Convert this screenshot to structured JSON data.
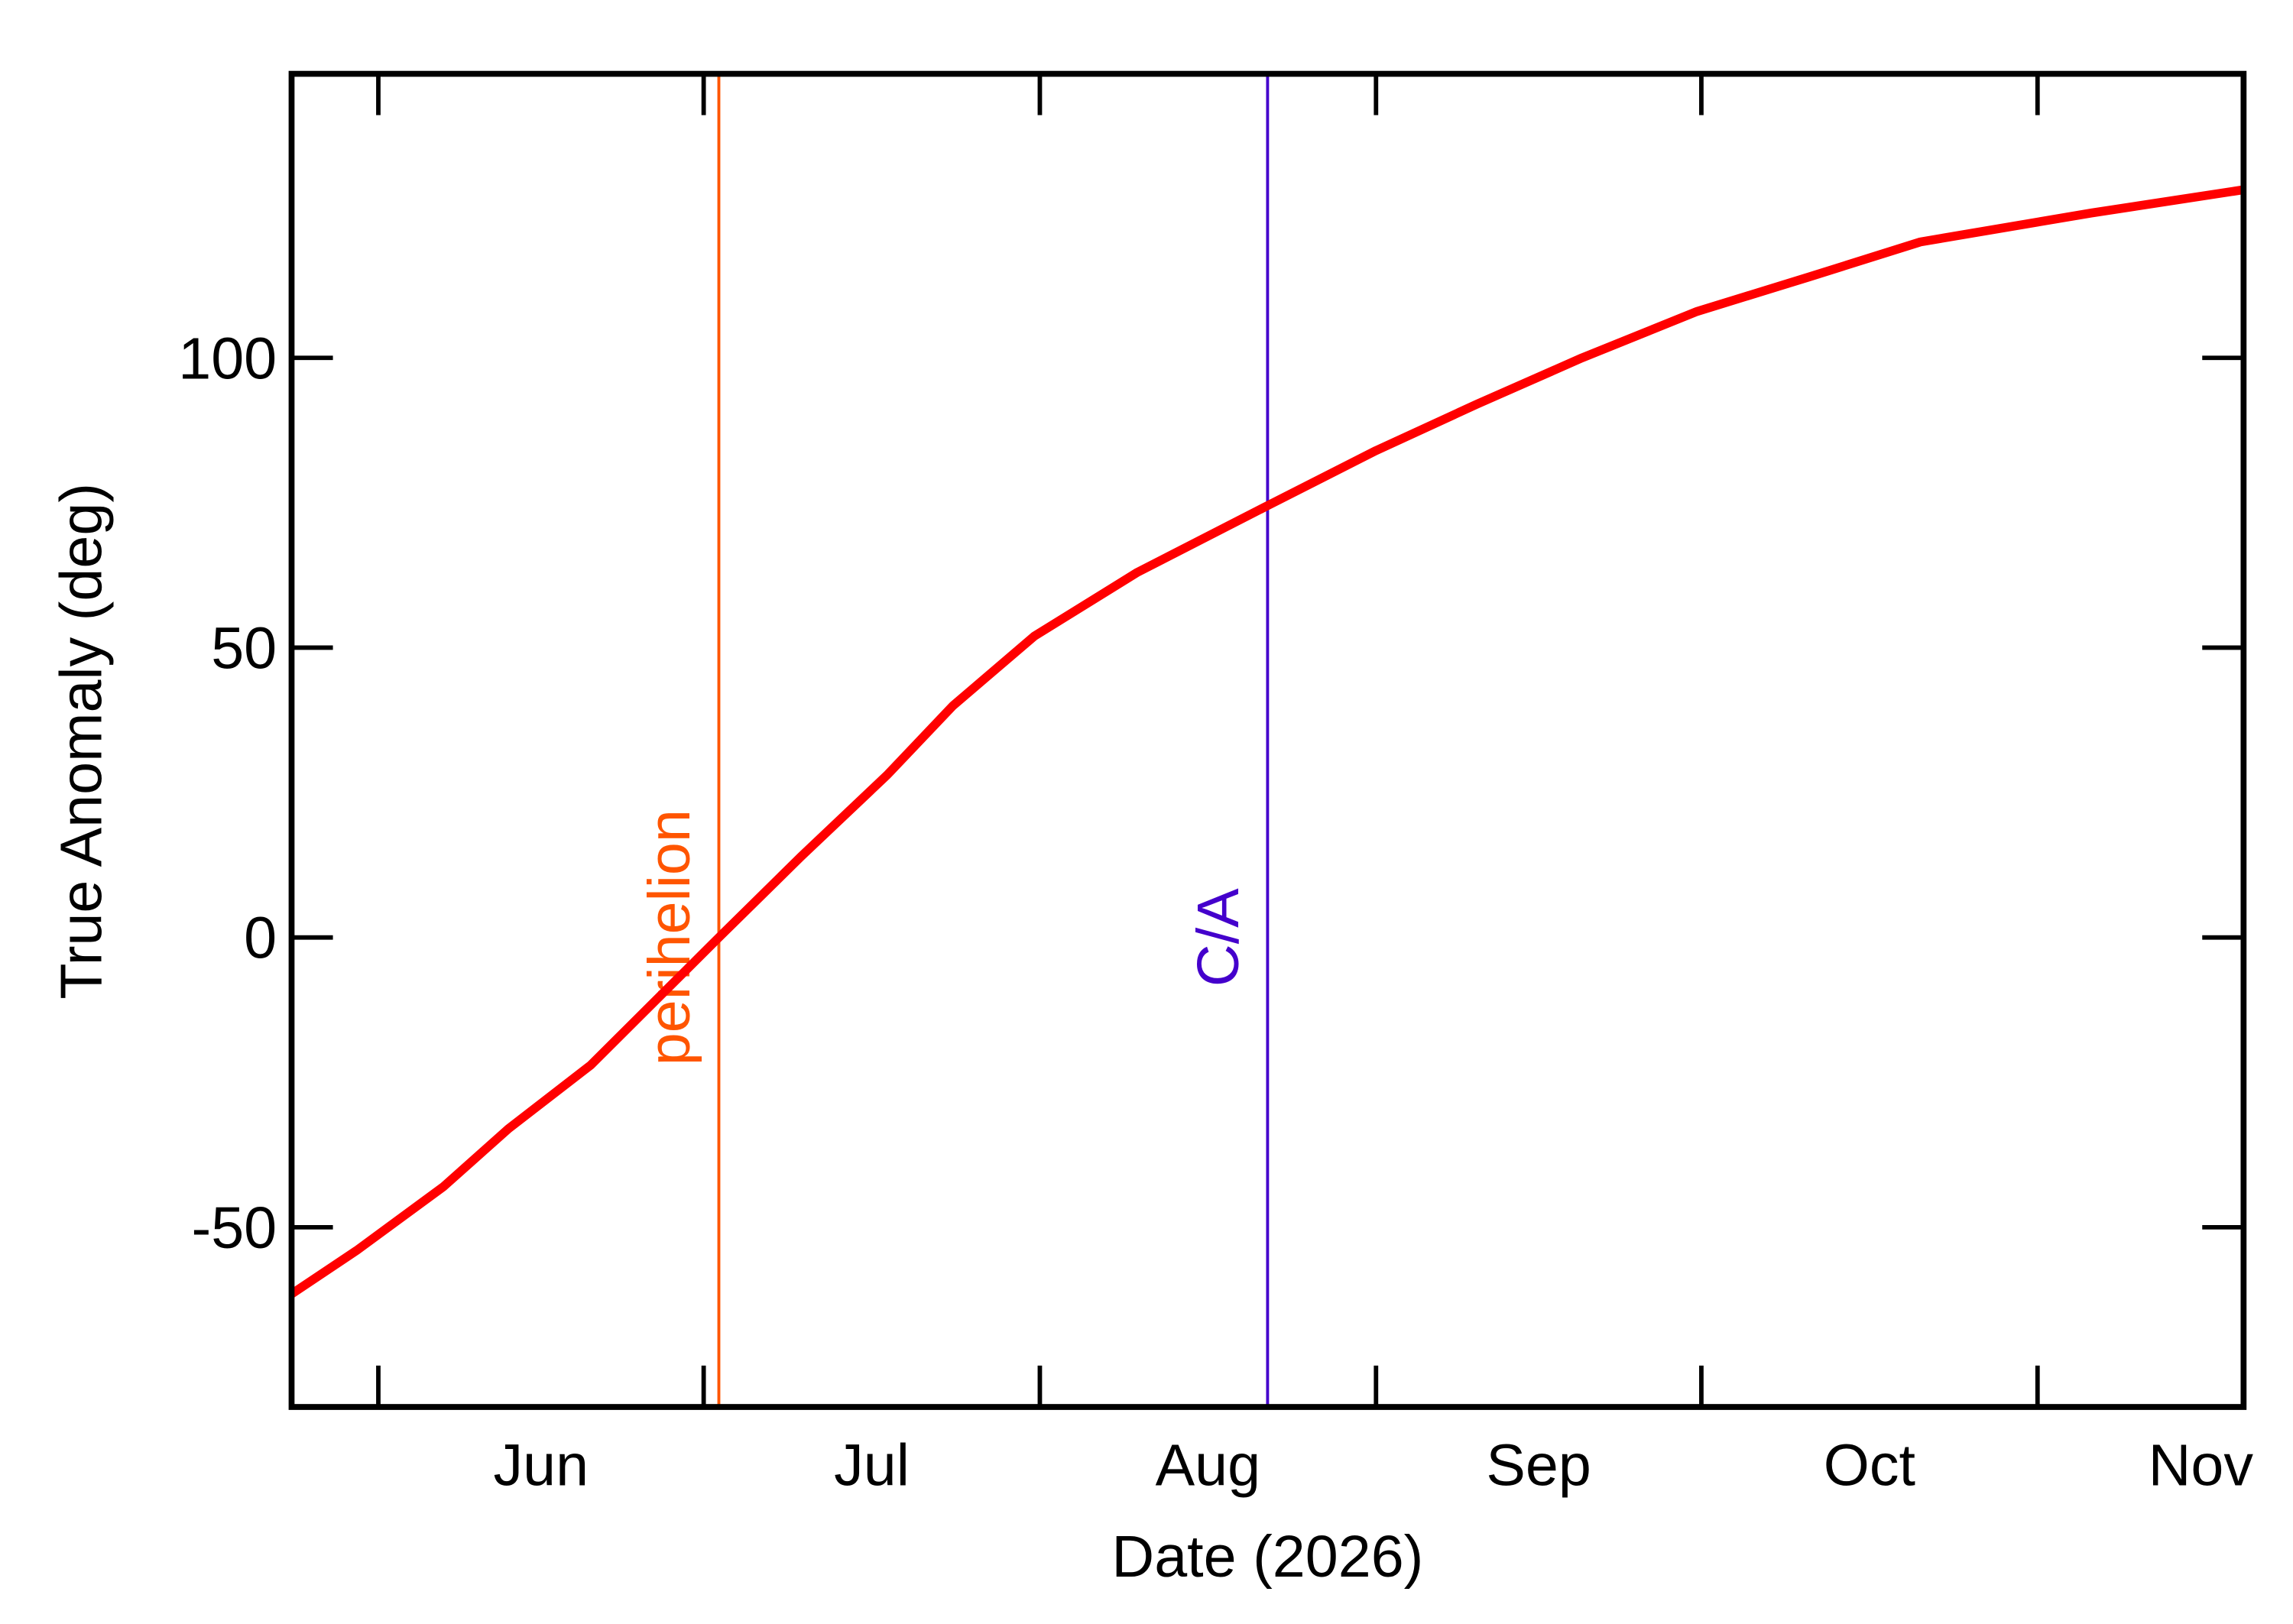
{
  "chart_data": {
    "type": "line",
    "x_label": "Date (2026)",
    "y_label": "True Anomaly (deg)",
    "x": [
      144,
      150,
      158,
      164,
      171.6,
      183.4,
      191,
      198.9,
      205,
      212.5,
      222,
      234,
      244,
      253.3,
      263,
      273.6,
      284,
      294.2,
      310,
      324
    ],
    "series": [
      {
        "color": "#ff0000",
        "values": [
          -61.5,
          -54,
          -43,
          -33,
          -22,
          0,
          14,
          28,
          40,
          52,
          63,
          74.5,
          84,
          92,
          100,
          108,
          114,
          120,
          125,
          129
        ]
      }
    ],
    "xlim": [
      144,
      324
    ],
    "xticks": [
      {
        "value": 152,
        "label": "Jun"
      },
      {
        "value": 182,
        "label": "Jul"
      },
      {
        "value": 213,
        "label": "Aug"
      },
      {
        "value": 244,
        "label": "Sep"
      },
      {
        "value": 274,
        "label": "Oct"
      },
      {
        "value": 305,
        "label": "Nov"
      }
    ],
    "ylim": [
      -81,
      149
    ],
    "yticks": [
      -50,
      0,
      50,
      100
    ],
    "annotations": [
      {
        "label": "perihelion",
        "x": 183.4,
        "color": "#ff5500"
      },
      {
        "label": "C/A",
        "x": 234,
        "color": "#4400cc"
      }
    ]
  }
}
